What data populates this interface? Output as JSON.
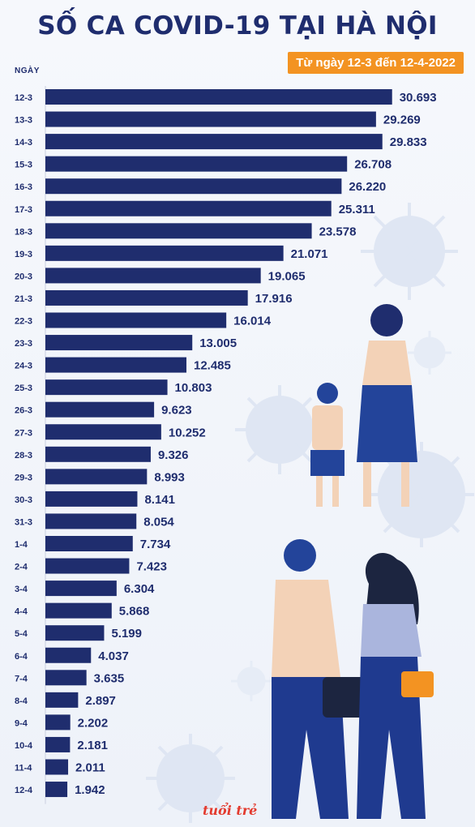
{
  "header": {
    "title": "SỐ CA COVID-19 TẠI HÀ NỘI",
    "subtitle": "Từ ngày 12-3 đến 12-4-2022"
  },
  "logo_text": "tuổi trẻ",
  "colors": {
    "bar": "#1f2d6e",
    "accent": "#f39322",
    "text": "#1f2d6e",
    "illustration": "#d9e2f2"
  },
  "chart_data": {
    "type": "bar",
    "orientation": "horizontal",
    "title": "SỐ CA COVID-19 TẠI HÀ NỘI",
    "subtitle": "Từ ngày 12-3 đến 12-4-2022",
    "ylabel": "NGÀY",
    "xlabel": "",
    "xlim": [
      0,
      31000
    ],
    "grid": false,
    "categories": [
      "12-3",
      "13-3",
      "14-3",
      "15-3",
      "16-3",
      "17-3",
      "18-3",
      "19-3",
      "20-3",
      "21-3",
      "22-3",
      "23-3",
      "24-3",
      "25-3",
      "26-3",
      "27-3",
      "28-3",
      "29-3",
      "30-3",
      "31-3",
      "1-4",
      "2-4",
      "3-4",
      "4-4",
      "5-4",
      "6-4",
      "7-4",
      "8-4",
      "9-4",
      "10-4",
      "11-4",
      "12-4"
    ],
    "values": [
      30693,
      29269,
      29833,
      26708,
      26220,
      25311,
      23578,
      21071,
      19065,
      17916,
      16014,
      13005,
      12485,
      10803,
      9623,
      10252,
      9326,
      8993,
      8141,
      8054,
      7734,
      7423,
      6304,
      5868,
      5199,
      4037,
      3635,
      2897,
      2202,
      2181,
      2011,
      1942
    ],
    "value_labels": [
      "30.693",
      "29.269",
      "29.833",
      "26.708",
      "26.220",
      "25.311",
      "23.578",
      "21.071",
      "19.065",
      "17.916",
      "16.014",
      "13.005",
      "12.485",
      "10.803",
      "9.623",
      "10.252",
      "9.326",
      "8.993",
      "8.141",
      "8.054",
      "7.734",
      "7.423",
      "6.304",
      "5.868",
      "5.199",
      "4.037",
      "3.635",
      "2.897",
      "2.202",
      "2.181",
      "2.011",
      "1.942"
    ]
  }
}
